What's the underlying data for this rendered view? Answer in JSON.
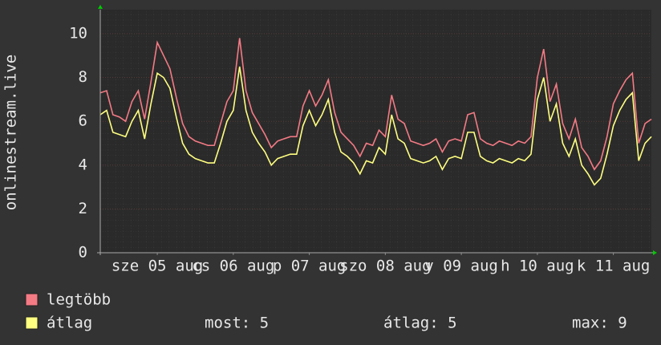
{
  "chart_data": {
    "type": "line",
    "y_label": "onlinestream.live",
    "xlim": [
      0,
      174
    ],
    "xticks": [
      {
        "value": 18,
        "label": "sze 05 aug"
      },
      {
        "value": 42,
        "label": "cs 06 aug"
      },
      {
        "value": 66,
        "label": "p 07 aug"
      },
      {
        "value": 90,
        "label": "szo 08 aug"
      },
      {
        "value": 114,
        "label": "v 09 aug"
      },
      {
        "value": 138,
        "label": "h 10 aug"
      },
      {
        "value": 162,
        "label": "k 11 aug"
      }
    ],
    "ylim": [
      0,
      11.1
    ],
    "yticks": [
      0,
      2,
      4,
      6,
      8,
      10
    ],
    "grid": true,
    "x": [
      0,
      2,
      4,
      6,
      8,
      10,
      12,
      14,
      16,
      18,
      20,
      22,
      24,
      26,
      28,
      30,
      32,
      34,
      36,
      38,
      40,
      42,
      44,
      46,
      48,
      50,
      52,
      54,
      56,
      58,
      60,
      62,
      64,
      66,
      68,
      70,
      72,
      74,
      76,
      78,
      80,
      82,
      84,
      86,
      88,
      90,
      92,
      94,
      96,
      98,
      100,
      102,
      104,
      106,
      108,
      110,
      112,
      114,
      116,
      118,
      120,
      122,
      124,
      126,
      128,
      130,
      132,
      134,
      136,
      138,
      140,
      142,
      144,
      146,
      148,
      150,
      152,
      154,
      156,
      158,
      160,
      162,
      164,
      166,
      168,
      170,
      172,
      174
    ],
    "series": [
      {
        "name": "legtöbb",
        "color": "#f47a84",
        "values": [
          7.3,
          7.4,
          6.3,
          6.2,
          6.0,
          6.9,
          7.4,
          6.1,
          7.8,
          9.6,
          9.0,
          8.4,
          7.1,
          5.9,
          5.3,
          5.1,
          5.0,
          4.9,
          4.9,
          5.9,
          6.9,
          7.4,
          9.8,
          7.4,
          6.4,
          5.9,
          5.4,
          4.8,
          5.1,
          5.2,
          5.3,
          5.3,
          6.7,
          7.4,
          6.7,
          7.2,
          7.9,
          6.4,
          5.5,
          5.2,
          4.9,
          4.4,
          5.0,
          4.9,
          5.6,
          5.3,
          7.2,
          6.1,
          5.9,
          5.1,
          5.0,
          4.9,
          5.0,
          5.2,
          4.6,
          5.1,
          5.2,
          5.1,
          6.3,
          6.4,
          5.2,
          5.0,
          4.9,
          5.1,
          5.0,
          4.9,
          5.1,
          5.0,
          5.3,
          8.0,
          9.3,
          6.9,
          7.7,
          5.9,
          5.2,
          6.1,
          4.8,
          4.4,
          3.8,
          4.2,
          5.3,
          6.8,
          7.4,
          7.9,
          8.2,
          5.0,
          5.9,
          6.1
        ]
      },
      {
        "name": "átlag",
        "color": "#ffff80",
        "values": [
          6.3,
          6.5,
          5.5,
          5.4,
          5.3,
          6.0,
          6.5,
          5.2,
          6.8,
          8.2,
          8.0,
          7.5,
          6.2,
          5.0,
          4.5,
          4.3,
          4.2,
          4.1,
          4.1,
          5.0,
          6.0,
          6.5,
          8.5,
          6.5,
          5.5,
          5.0,
          4.6,
          4.0,
          4.3,
          4.4,
          4.5,
          4.5,
          5.8,
          6.5,
          5.8,
          6.3,
          7.0,
          5.5,
          4.6,
          4.4,
          4.1,
          3.6,
          4.2,
          4.1,
          4.8,
          4.5,
          6.3,
          5.2,
          5.0,
          4.3,
          4.2,
          4.1,
          4.2,
          4.4,
          3.8,
          4.3,
          4.4,
          4.3,
          5.5,
          5.5,
          4.4,
          4.2,
          4.1,
          4.3,
          4.2,
          4.1,
          4.3,
          4.2,
          4.5,
          7.0,
          8.0,
          6.0,
          6.8,
          5.0,
          4.4,
          5.2,
          4.0,
          3.6,
          3.1,
          3.4,
          4.5,
          5.8,
          6.5,
          7.0,
          7.3,
          4.2,
          5.0,
          5.3
        ]
      }
    ],
    "stats": [
      "most: 5",
      "átlag: 5",
      "max: 9"
    ]
  }
}
